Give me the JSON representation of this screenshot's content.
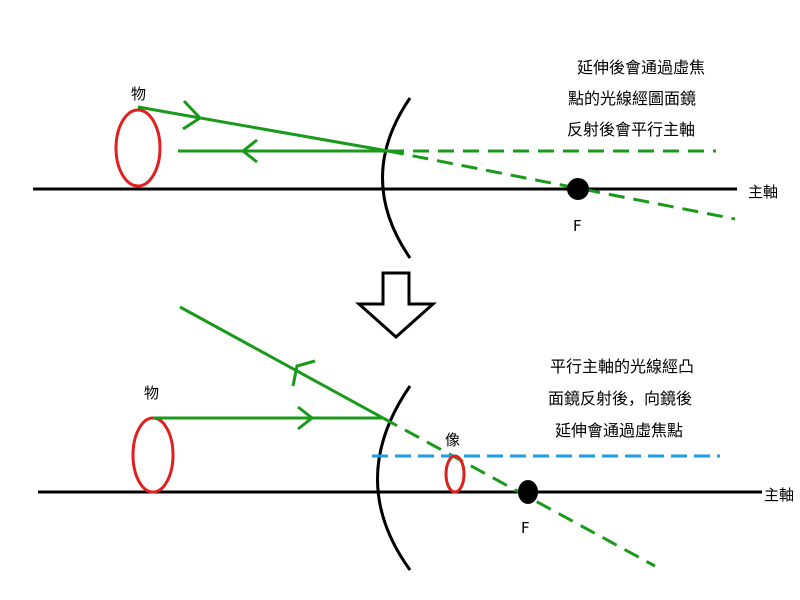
{
  "colors": {
    "axis": "#000000",
    "ray": "#1a9a1a",
    "object": "#e02020",
    "image_line": "#1e9ee0"
  },
  "top_panel": {
    "object_label": "物",
    "focal_label": "F",
    "axis_label": "主軸",
    "note_lines": [
      "延伸後會通過虛焦",
      "點的光線經圖面鏡",
      "反射後會平行主軸"
    ]
  },
  "transition": {
    "icon": "down-arrow-icon"
  },
  "bottom_panel": {
    "object_label": "物",
    "image_label": "像",
    "focal_label": "F",
    "axis_label": "主軸",
    "note_lines": [
      "平行主軸的光線經凸",
      "面鏡反射後，向鏡後",
      "延伸會通過虛焦點"
    ]
  }
}
